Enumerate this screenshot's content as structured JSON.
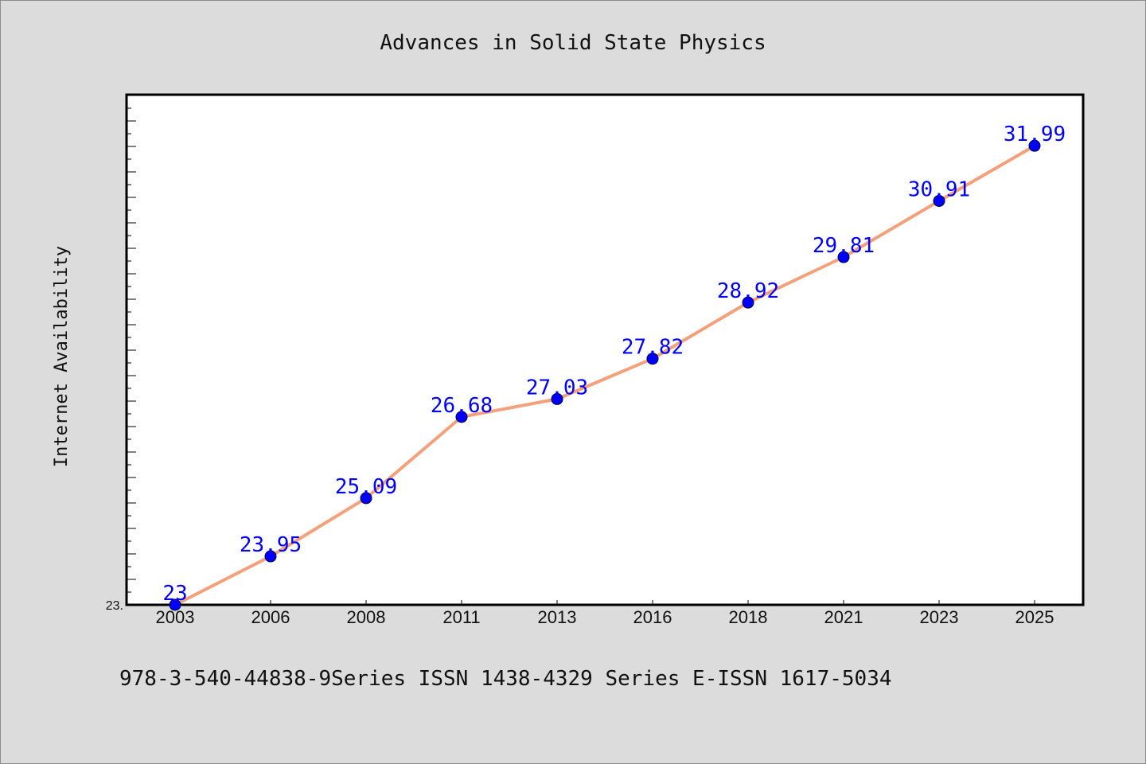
{
  "chart_data": {
    "type": "line",
    "title": "Advances in Solid State Physics",
    "xlabel": "",
    "ylabel": "Internet Availability",
    "categories": [
      "2003",
      "2006",
      "2008",
      "2011",
      "2013",
      "2016",
      "2018",
      "2021",
      "2023",
      "2025"
    ],
    "series": [
      {
        "values": [
          23,
          23.95,
          25.09,
          26.68,
          27.03,
          27.82,
          28.92,
          29.81,
          30.91,
          31.99
        ],
        "data_labels": [
          "23",
          "23.95",
          "25.09",
          "26.68",
          "27.03",
          "27.82",
          "28.92",
          "29.81",
          "30.91",
          "31.99"
        ],
        "line_color": "#f4a07a",
        "marker_color": "#0000ff"
      }
    ],
    "ylim": [
      23,
      32.99
    ],
    "y_tick_labels": [
      "23."
    ],
    "grid": false,
    "legend": "none"
  },
  "footer": {
    "text": "978-3-540-44838-9Series ISSN 1438-4329 Series E-ISSN 1617-5034"
  }
}
